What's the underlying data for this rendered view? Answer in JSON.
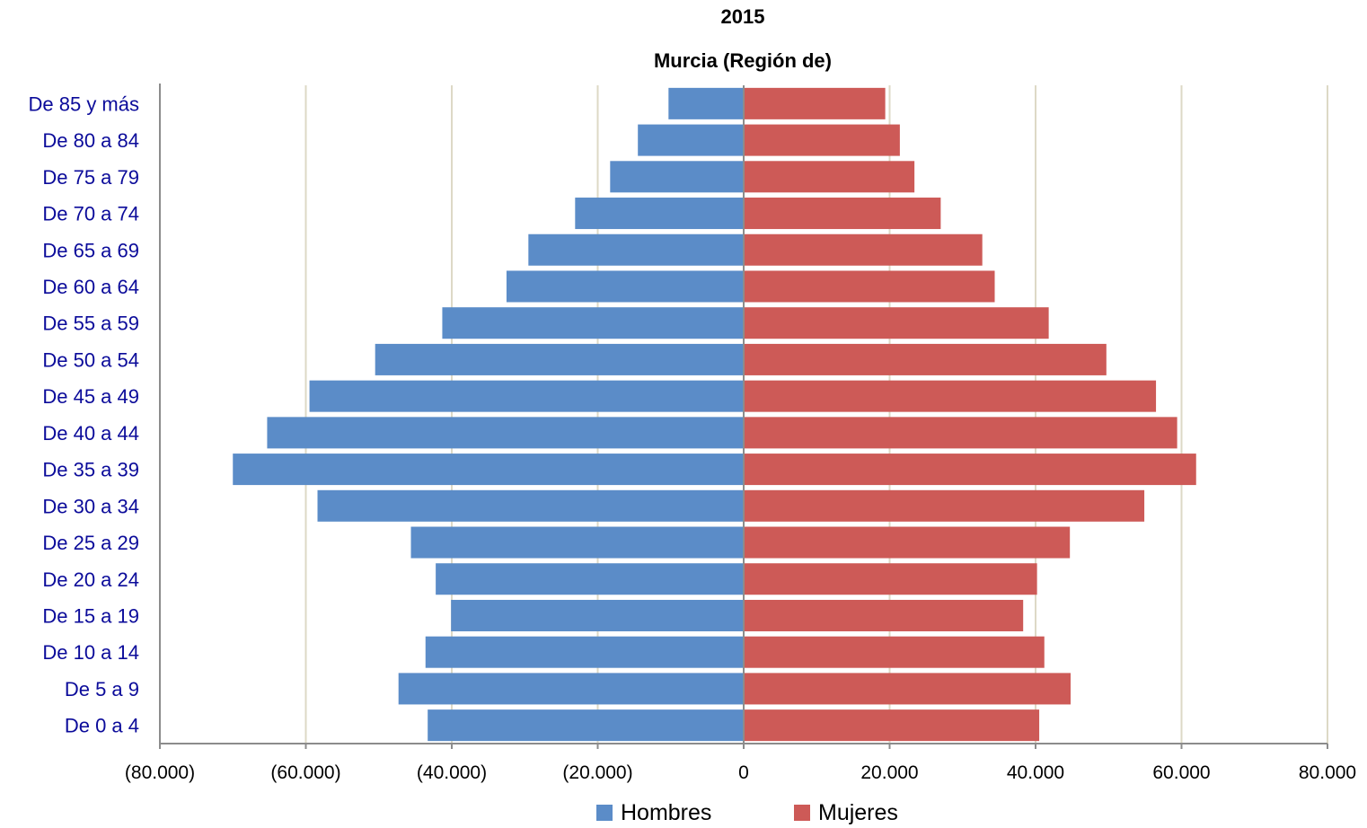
{
  "chart_data": {
    "type": "bar",
    "orientation": "horizontal",
    "subtype": "population-pyramid",
    "title": "2015",
    "subtitle": "Murcia (Región de)",
    "categories": [
      "De 85 y más",
      "De 80 a 84",
      "De 75 a 79",
      "De 70 a 74",
      "De 65 a 69",
      "De 60 a 64",
      "De 55 a 59",
      "De 50 a 54",
      "De 45 a 49",
      "De 40 a 44",
      "De 35 a 39",
      "De 30 a 34",
      "De 25 a 29",
      "De 20 a 24",
      "De 15 a 19",
      "De 10 a 14",
      "De 5 a 9",
      "De 0 a 4"
    ],
    "series": [
      {
        "name": "Hombres",
        "color": "#5b8cc8",
        "values": [
          -10300,
          -14500,
          -18300,
          -23100,
          -29500,
          -32500,
          -41300,
          -50500,
          -59500,
          -65300,
          -70000,
          -58400,
          -45600,
          -42200,
          -40100,
          -43600,
          -47300,
          -43300
        ]
      },
      {
        "name": "Mujeres",
        "color": "#cd5a57",
        "values": [
          19400,
          21400,
          23400,
          27000,
          32700,
          34400,
          41800,
          49700,
          56500,
          59400,
          62000,
          54900,
          44700,
          40200,
          38300,
          41200,
          44800,
          40500
        ]
      }
    ],
    "xlim": [
      -80000,
      80000
    ],
    "x_ticks": [
      -80000,
      -60000,
      -40000,
      -20000,
      0,
      20000,
      40000,
      60000,
      80000
    ],
    "x_tick_labels": [
      "(80.000)",
      "(60.000)",
      "(40.000)",
      "(20.000)",
      "0",
      "20.000",
      "40.000",
      "60.000",
      "80.000"
    ],
    "xlabel": "",
    "ylabel": "",
    "grid": "vertical",
    "legend_position": "bottom"
  }
}
